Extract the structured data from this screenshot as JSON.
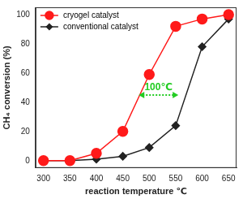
{
  "chart_data": {
    "type": "line",
    "x_label": "reaction temperature ℃",
    "y_label": "CH₄ conversion (%)",
    "x": [
      300,
      350,
      400,
      450,
      500,
      550,
      600,
      650
    ],
    "series": [
      {
        "name": "cryogel catalyst",
        "color": "#ff1a1a",
        "marker": "circle",
        "line_style": "solid",
        "values": [
          0,
          0,
          5,
          20,
          59,
          92,
          97,
          100
        ]
      },
      {
        "name": "conventional catalyst",
        "color": "#222222",
        "marker": "diamond",
        "line_style": "solid",
        "values": [
          0,
          0,
          1,
          3,
          9,
          24,
          78,
          97
        ]
      }
    ],
    "xlim": [
      285,
      665
    ],
    "xticks": [
      300,
      350,
      400,
      450,
      500,
      550,
      600,
      650
    ],
    "ylim": [
      -5,
      105
    ],
    "yticks": [
      0,
      20,
      40,
      60,
      80,
      100
    ],
    "grid": false,
    "legend": "upper left",
    "annotations": [
      {
        "text": "100℃",
        "x": [
          480,
          555
        ],
        "y": 45,
        "color": "#22cc22"
      }
    ]
  }
}
